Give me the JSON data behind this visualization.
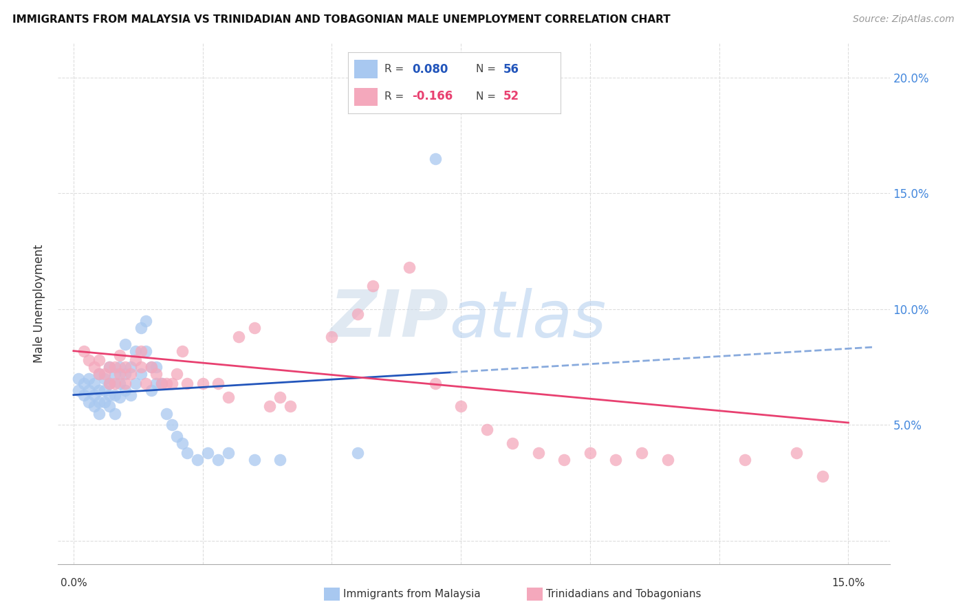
{
  "title": "IMMIGRANTS FROM MALAYSIA VS TRINIDADIAN AND TOBAGONIAN MALE UNEMPLOYMENT CORRELATION CHART",
  "source": "Source: ZipAtlas.com",
  "ylabel": "Male Unemployment",
  "blue_color": "#a8c8f0",
  "pink_color": "#f4a8bc",
  "trendline_blue_color": "#2255bb",
  "trendline_pink_color": "#e84070",
  "trendline_dashed_color": "#88aadd",
  "background_color": "#ffffff",
  "grid_color": "#dddddd",
  "watermark_zip": "ZIP",
  "watermark_atlas": "atlas",
  "blue_scatter_x": [
    0.001,
    0.001,
    0.002,
    0.002,
    0.003,
    0.003,
    0.003,
    0.004,
    0.004,
    0.004,
    0.005,
    0.005,
    0.005,
    0.005,
    0.006,
    0.006,
    0.006,
    0.007,
    0.007,
    0.007,
    0.007,
    0.008,
    0.008,
    0.008,
    0.009,
    0.009,
    0.009,
    0.01,
    0.01,
    0.01,
    0.011,
    0.011,
    0.012,
    0.012,
    0.013,
    0.013,
    0.014,
    0.014,
    0.015,
    0.015,
    0.016,
    0.016,
    0.017,
    0.018,
    0.019,
    0.02,
    0.021,
    0.022,
    0.024,
    0.026,
    0.028,
    0.03,
    0.035,
    0.04,
    0.055,
    0.07
  ],
  "blue_scatter_y": [
    0.065,
    0.07,
    0.063,
    0.068,
    0.06,
    0.065,
    0.07,
    0.058,
    0.063,
    0.068,
    0.055,
    0.06,
    0.065,
    0.072,
    0.06,
    0.065,
    0.07,
    0.058,
    0.063,
    0.068,
    0.075,
    0.055,
    0.063,
    0.072,
    0.062,
    0.068,
    0.075,
    0.065,
    0.072,
    0.085,
    0.063,
    0.075,
    0.068,
    0.082,
    0.072,
    0.092,
    0.082,
    0.095,
    0.065,
    0.075,
    0.068,
    0.075,
    0.068,
    0.055,
    0.05,
    0.045,
    0.042,
    0.038,
    0.035,
    0.038,
    0.035,
    0.038,
    0.035,
    0.035,
    0.038,
    0.165
  ],
  "pink_scatter_x": [
    0.002,
    0.003,
    0.004,
    0.005,
    0.005,
    0.006,
    0.007,
    0.007,
    0.008,
    0.008,
    0.009,
    0.009,
    0.01,
    0.01,
    0.011,
    0.012,
    0.013,
    0.013,
    0.014,
    0.015,
    0.016,
    0.017,
    0.018,
    0.019,
    0.02,
    0.021,
    0.022,
    0.025,
    0.028,
    0.03,
    0.032,
    0.035,
    0.038,
    0.04,
    0.042,
    0.05,
    0.055,
    0.058,
    0.065,
    0.07,
    0.075,
    0.08,
    0.085,
    0.09,
    0.095,
    0.1,
    0.105,
    0.11,
    0.115,
    0.13,
    0.14,
    0.145
  ],
  "pink_scatter_y": [
    0.082,
    0.078,
    0.075,
    0.072,
    0.078,
    0.072,
    0.068,
    0.075,
    0.068,
    0.075,
    0.072,
    0.08,
    0.068,
    0.075,
    0.072,
    0.078,
    0.075,
    0.082,
    0.068,
    0.075,
    0.072,
    0.068,
    0.068,
    0.068,
    0.072,
    0.082,
    0.068,
    0.068,
    0.068,
    0.062,
    0.088,
    0.092,
    0.058,
    0.062,
    0.058,
    0.088,
    0.098,
    0.11,
    0.118,
    0.068,
    0.058,
    0.048,
    0.042,
    0.038,
    0.035,
    0.038,
    0.035,
    0.038,
    0.035,
    0.035,
    0.038,
    0.028
  ],
  "xlim_min": -0.003,
  "xlim_max": 0.158,
  "ylim_min": -0.01,
  "ylim_max": 0.215,
  "xticks": [
    0.0,
    0.025,
    0.05,
    0.075,
    0.1,
    0.125,
    0.15
  ],
  "yticks": [
    0.0,
    0.05,
    0.1,
    0.15,
    0.2
  ],
  "blue_trend_start_y": 0.063,
  "blue_trend_end_y": 0.083,
  "blue_trend_solid_end_x": 0.073,
  "pink_trend_start_y": 0.082,
  "pink_trend_end_y": 0.051,
  "legend_r_blue": "0.080",
  "legend_n_blue": "56",
  "legend_r_pink": "-0.166",
  "legend_n_pink": "52"
}
